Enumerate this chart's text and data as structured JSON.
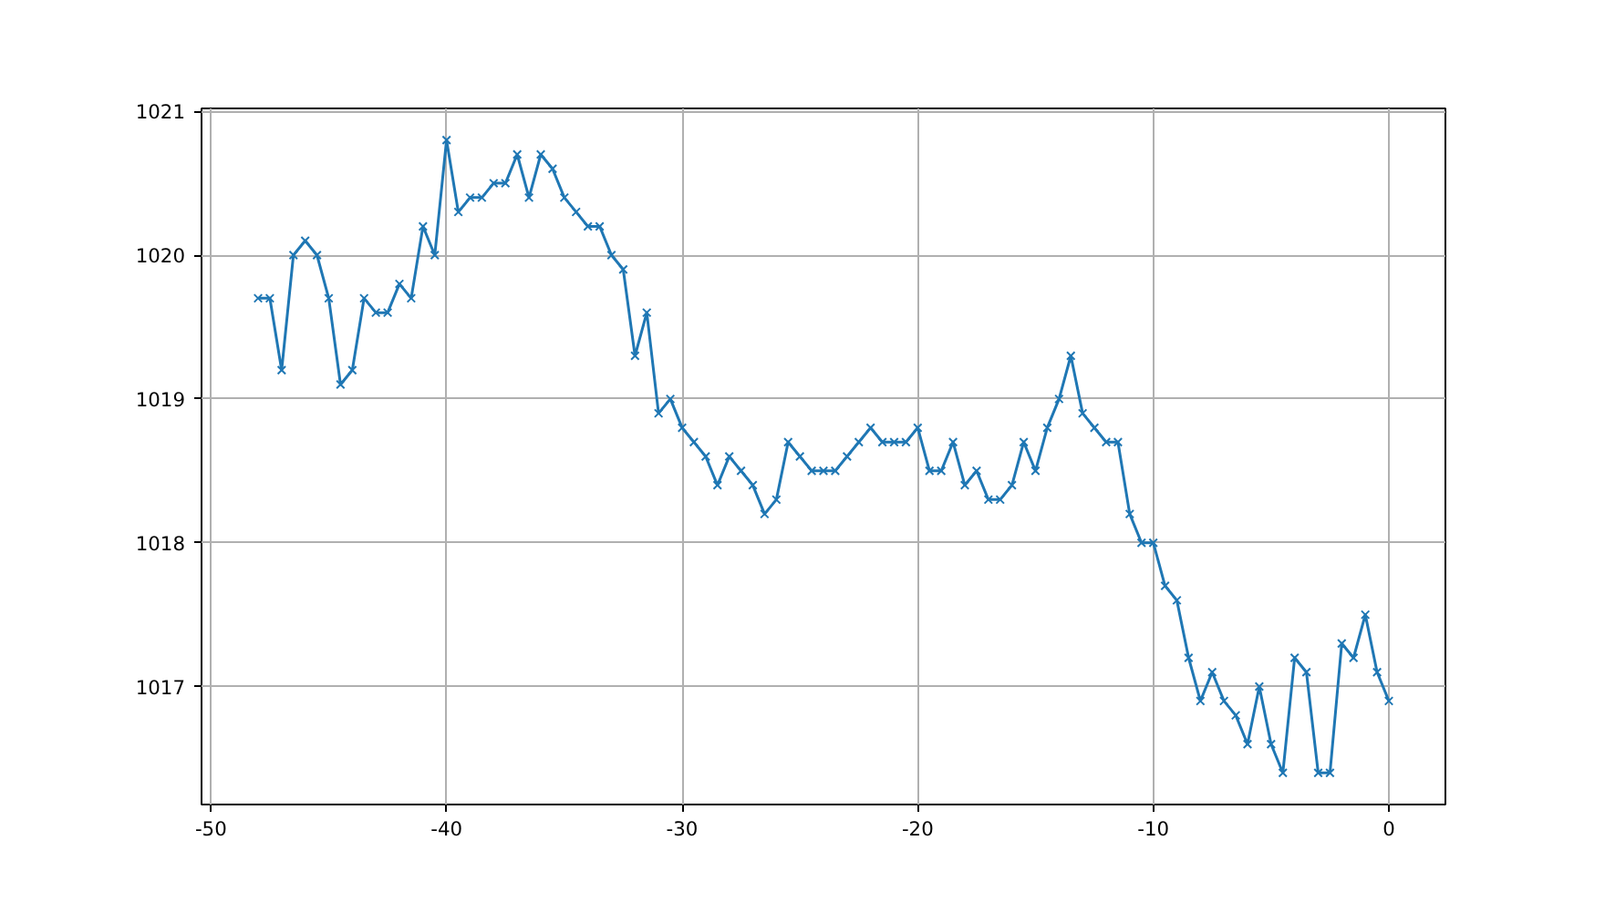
{
  "chart_data": {
    "type": "line",
    "x": [
      -48,
      -47.5,
      -47,
      -46.5,
      -46,
      -45.5,
      -45,
      -44.5,
      -44,
      -43.5,
      -43,
      -42.5,
      -42,
      -41.5,
      -41,
      -40.5,
      -40,
      -39.5,
      -39,
      -38.5,
      -38,
      -37.5,
      -37,
      -36.5,
      -36,
      -35.5,
      -35,
      -34.5,
      -34,
      -33.5,
      -33,
      -32.5,
      -32,
      -31.5,
      -31,
      -30.5,
      -30,
      -29.5,
      -29,
      -28.5,
      -28,
      -27.5,
      -27,
      -26.5,
      -26,
      -25.5,
      -25,
      -24.5,
      -24,
      -23.5,
      -23,
      -22.5,
      -22,
      -21.5,
      -21,
      -20.5,
      -20,
      -19.5,
      -19,
      -18.5,
      -18,
      -17.5,
      -17,
      -16.5,
      -16,
      -15.5,
      -15,
      -14.5,
      -14,
      -13.5,
      -13,
      -12.5,
      -12,
      -11.5,
      -11,
      -10.5,
      -10,
      -9.5,
      -9,
      -8.5,
      -8,
      -7.5,
      -7,
      -6.5,
      -6,
      -5.5,
      -5,
      -4.5,
      -4,
      -3.5,
      -3,
      -2.5,
      -2,
      -1.5,
      -1,
      -0.5,
      0
    ],
    "series": [
      {
        "color": "#1f77b4",
        "values": [
          1019.7,
          1019.7,
          1019.2,
          1020.0,
          1020.1,
          1020.0,
          1019.7,
          1019.1,
          1019.2,
          1019.7,
          1019.6,
          1019.6,
          1019.8,
          1019.7,
          1020.2,
          1020.0,
          1020.8,
          1020.3,
          1020.4,
          1020.4,
          1020.5,
          1020.5,
          1020.7,
          1020.4,
          1020.7,
          1020.6,
          1020.4,
          1020.3,
          1020.2,
          1020.2,
          1020.0,
          1019.9,
          1019.3,
          1019.6,
          1018.9,
          1019.0,
          1018.8,
          1018.7,
          1018.6,
          1018.4,
          1018.6,
          1018.5,
          1018.4,
          1018.2,
          1018.3,
          1018.7,
          1018.6,
          1018.5,
          1018.5,
          1018.5,
          1018.6,
          1018.7,
          1018.8,
          1018.7,
          1018.7,
          1018.7,
          1018.8,
          1018.5,
          1018.5,
          1018.7,
          1018.4,
          1018.5,
          1018.3,
          1018.3,
          1018.4,
          1018.7,
          1018.5,
          1018.8,
          1019.0,
          1019.3,
          1018.9,
          1018.8,
          1018.7,
          1018.7,
          1018.2,
          1018.0,
          1018.0,
          1017.7,
          1017.6,
          1017.2,
          1016.9,
          1017.1,
          1016.9,
          1016.8,
          1016.6,
          1017.0,
          1016.6,
          1016.4,
          1017.2,
          1017.1,
          1016.4,
          1016.4,
          1017.3,
          1017.2,
          1017.5,
          1017.1,
          1016.9
        ]
      }
    ],
    "xlim": [
      -50.4,
      2.4
    ],
    "ylim": [
      1016.18,
      1021.02
    ],
    "xticks": [
      -50,
      -40,
      -30,
      -20,
      -10,
      0
    ],
    "yticks": [
      1017,
      1018,
      1019,
      1020,
      1021
    ],
    "grid": true,
    "marker": "cross",
    "line_style": "solid"
  }
}
